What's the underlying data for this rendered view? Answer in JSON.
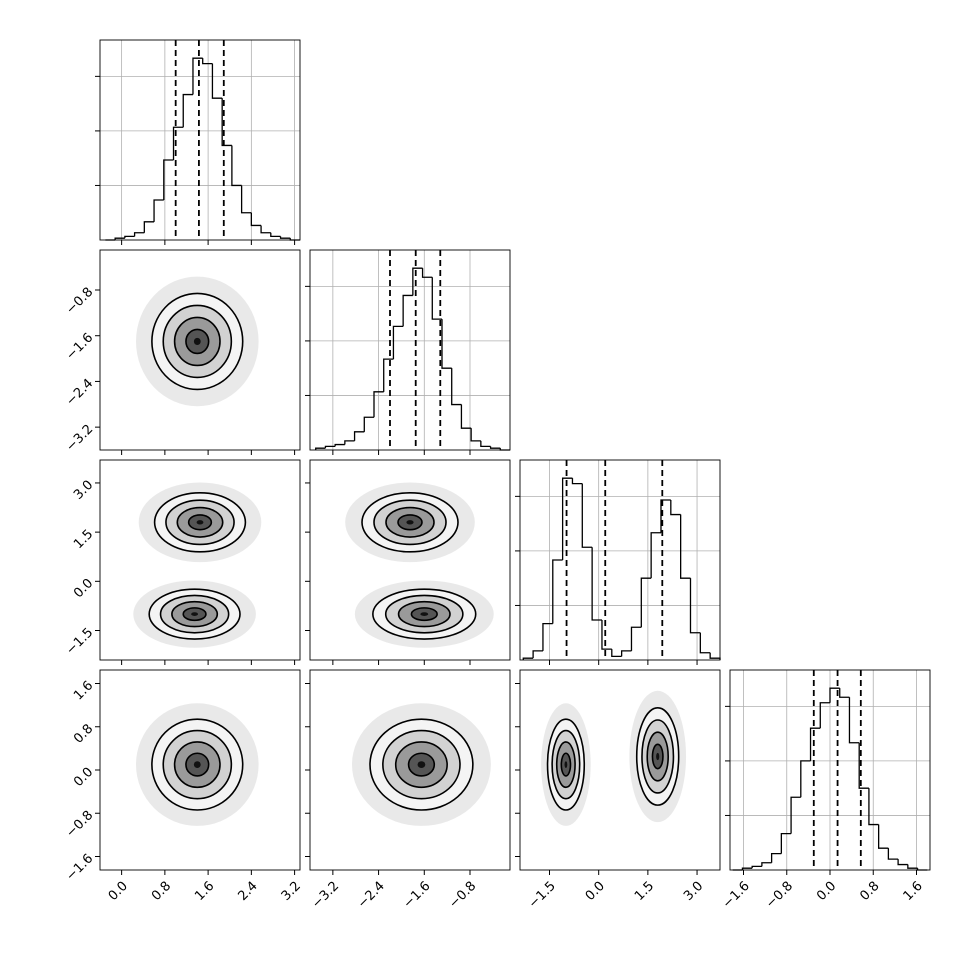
{
  "chart_data": {
    "type": "corner",
    "hist_ylim": [
      0,
      110
    ],
    "hist_yticks": [
      30,
      60,
      90
    ],
    "parameters": [
      {
        "xlim": [
          -0.4,
          3.3
        ],
        "ticks": [
          {
            "value": 0,
            "label": "0.0"
          },
          {
            "value": 0.8,
            "label": "0.8"
          },
          {
            "value": 1.6,
            "label": "1.6"
          },
          {
            "value": 2.4,
            "label": "2.4"
          },
          {
            "value": 3.2,
            "label": "3.2"
          }
        ],
        "bins": [
          -0.3,
          -0.12,
          0.06,
          0.24,
          0.42,
          0.6,
          0.78,
          0.96,
          1.14,
          1.32,
          1.5,
          1.68,
          1.86,
          2.04,
          2.22,
          2.4,
          2.58,
          2.76,
          2.94,
          3.12,
          3.3
        ],
        "counts": [
          0,
          1,
          2,
          4,
          10,
          22,
          44,
          62,
          80,
          100,
          97,
          78,
          52,
          30,
          15,
          8,
          4,
          2,
          1,
          0
        ],
        "quantiles": [
          1.0,
          1.43,
          1.89
        ]
      },
      {
        "xlim": [
          -3.6,
          -0.1
        ],
        "ticks": [
          {
            "value": -3.2,
            "label": "−3.2"
          },
          {
            "value": -2.4,
            "label": "−2.4"
          },
          {
            "value": -1.6,
            "label": "−1.6"
          },
          {
            "value": -0.8,
            "label": "−0.8"
          }
        ],
        "bins": [
          -3.5,
          -3.33,
          -3.16,
          -2.99,
          -2.82,
          -2.65,
          -2.48,
          -2.31,
          -2.14,
          -1.97,
          -1.8,
          -1.63,
          -1.46,
          -1.29,
          -1.12,
          -0.95,
          -0.78,
          -0.61,
          -0.44,
          -0.27,
          -0.1
        ],
        "counts": [
          1,
          2,
          3,
          5,
          10,
          18,
          32,
          50,
          68,
          85,
          100,
          95,
          72,
          45,
          25,
          12,
          5,
          2,
          1,
          0
        ],
        "quantiles": [
          -2.2,
          -1.75,
          -1.32
        ]
      },
      {
        "xlim": [
          -2.4,
          3.7
        ],
        "ticks": [
          {
            "value": -1.5,
            "label": "−1.5"
          },
          {
            "value": 0,
            "label": "0.0"
          },
          {
            "value": 1.5,
            "label": "1.5"
          },
          {
            "value": 3,
            "label": "3.0"
          }
        ],
        "bins": [
          -2.3,
          -2.0,
          -1.7,
          -1.4,
          -1.1,
          -0.8,
          -0.5,
          -0.2,
          0.1,
          0.4,
          0.7,
          1.0,
          1.3,
          1.6,
          1.9,
          2.2,
          2.5,
          2.8,
          3.1,
          3.4,
          3.7
        ],
        "counts": [
          1,
          5,
          20,
          55,
          100,
          97,
          62,
          22,
          6,
          2,
          5,
          18,
          45,
          70,
          88,
          80,
          45,
          15,
          4,
          1
        ],
        "quantiles": [
          -0.98,
          0.2,
          1.94
        ]
      },
      {
        "xlim": [
          -1.85,
          1.85
        ],
        "ticks": [
          {
            "value": -1.6,
            "label": "−1.6"
          },
          {
            "value": -0.8,
            "label": "−0.8"
          },
          {
            "value": 0,
            "label": "0.0"
          },
          {
            "value": 0.8,
            "label": "0.8"
          },
          {
            "value": 1.6,
            "label": "1.6"
          }
        ],
        "bins": [
          -1.8,
          -1.62,
          -1.44,
          -1.26,
          -1.08,
          -0.9,
          -0.72,
          -0.54,
          -0.36,
          -0.18,
          0,
          0.18,
          0.36,
          0.54,
          0.72,
          0.9,
          1.08,
          1.26,
          1.44,
          1.62,
          1.8
        ],
        "counts": [
          0,
          1,
          2,
          4,
          9,
          20,
          40,
          60,
          78,
          92,
          100,
          95,
          70,
          45,
          25,
          12,
          6,
          3,
          1,
          0
        ],
        "quantiles": [
          -0.3,
          0.14,
          0.57
        ]
      }
    ],
    "pairs": [
      [
        [
          {
            "x": 1.4,
            "y": -1.7,
            "sx": 0.42,
            "sy": 0.42
          }
        ]
      ],
      [
        [
          {
            "x": 1.45,
            "y": 1.8,
            "sx": 0.42,
            "sy": 0.45
          },
          {
            "x": 1.35,
            "y": -1.0,
            "sx": 0.42,
            "sy": 0.38
          }
        ],
        [
          {
            "x": -1.85,
            "y": 1.8,
            "sx": 0.42,
            "sy": 0.45
          },
          {
            "x": -1.6,
            "y": -1.0,
            "sx": 0.45,
            "sy": 0.38
          }
        ]
      ],
      [
        [
          {
            "x": 1.4,
            "y": 0.1,
            "sx": 0.42,
            "sy": 0.42
          }
        ],
        [
          {
            "x": -1.65,
            "y": 0.1,
            "sx": 0.45,
            "sy": 0.42
          }
        ],
        [
          {
            "x": -1.0,
            "y": 0.1,
            "sx": 0.28,
            "sy": 0.42
          },
          {
            "x": 1.8,
            "y": 0.25,
            "sx": 0.32,
            "sy": 0.45
          }
        ]
      ]
    ]
  }
}
